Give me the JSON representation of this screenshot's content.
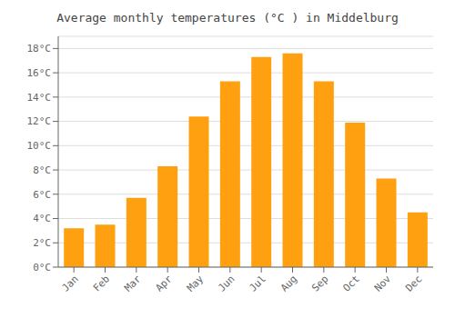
{
  "chart_data": {
    "type": "bar",
    "title": "Average monthly temperatures (°C ) in Middelburg",
    "categories": [
      "Jan",
      "Feb",
      "Mar",
      "Apr",
      "May",
      "Jun",
      "Jul",
      "Aug",
      "Sep",
      "Oct",
      "Nov",
      "Dec"
    ],
    "values": [
      3.2,
      3.5,
      5.7,
      8.3,
      12.4,
      15.3,
      17.3,
      17.6,
      15.3,
      11.9,
      7.3,
      4.5
    ],
    "color": "#FFA010",
    "ylim": [
      0,
      19
    ],
    "yticks": [
      {
        "value": 0,
        "label": "0°C"
      },
      {
        "value": 2,
        "label": "2°C"
      },
      {
        "value": 4,
        "label": "4°C"
      },
      {
        "value": 6,
        "label": "6°C"
      },
      {
        "value": 8,
        "label": "8°C"
      },
      {
        "value": 10,
        "label": "10°C"
      },
      {
        "value": 12,
        "label": "12°C"
      },
      {
        "value": 14,
        "label": "14°C"
      },
      {
        "value": 16,
        "label": "16°C"
      },
      {
        "value": 18,
        "label": "18°C"
      }
    ],
    "grid": true
  }
}
